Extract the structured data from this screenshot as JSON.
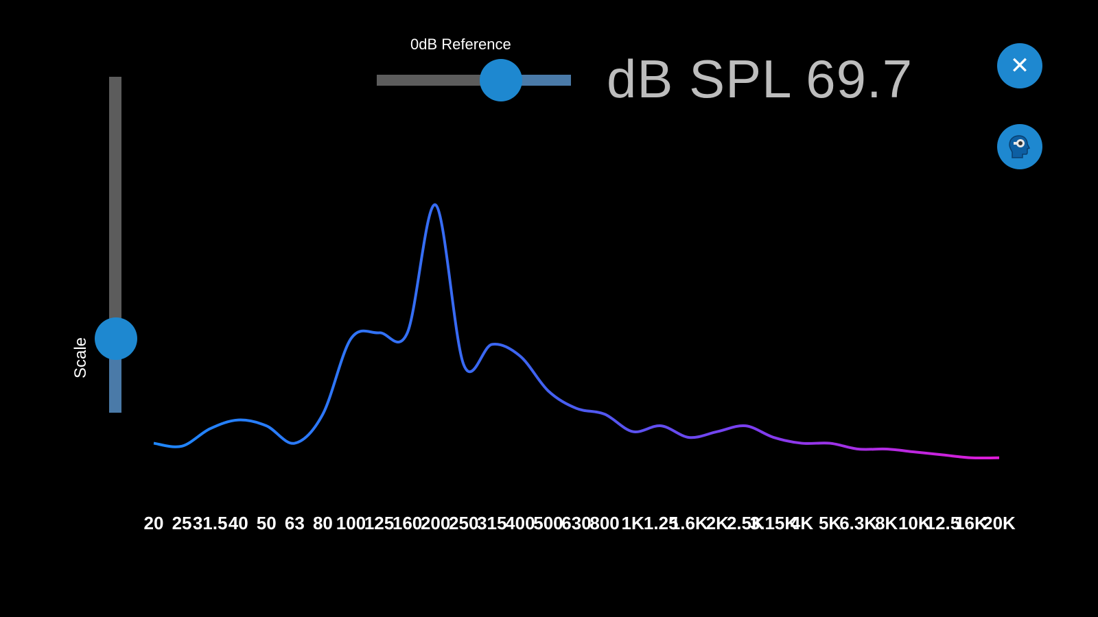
{
  "scale_slider": {
    "label": "Scale",
    "value": 0.22
  },
  "reference_slider": {
    "label": "0dB Reference",
    "value": 0.64
  },
  "spl_readout": {
    "text": "dB SPL 69.7"
  },
  "buttons": {
    "close_icon": "close-icon",
    "profile_icon": "head-profile-icon"
  },
  "colors": {
    "accent": "#1e88d0",
    "curve_start": "#1e88ff",
    "curve_mid": "#7b3ff0",
    "curve_end": "#e21ad6",
    "readout_text": "#bdbdbd"
  },
  "chart_data": {
    "type": "line",
    "title": "",
    "xlabel": "",
    "ylabel": "",
    "grid": false,
    "legend": "none",
    "ylim": [
      0,
      100
    ],
    "categories": [
      "20",
      "25",
      "31.5",
      "40",
      "50",
      "63",
      "80",
      "100",
      "125",
      "160",
      "200",
      "250",
      "315",
      "400",
      "500",
      "630",
      "800",
      "1K",
      "1.25",
      "1.6K",
      "2K",
      "2.5K",
      "3.15K",
      "4K",
      "5K",
      "6.3K",
      "8K",
      "10K",
      "12.5",
      "16K",
      "20K"
    ],
    "series": [
      {
        "values": [
          6,
          5,
          11,
          14,
          12,
          6,
          16,
          42,
          44,
          44,
          88,
          33,
          40,
          36,
          24,
          18,
          16,
          10,
          12,
          8,
          10,
          12,
          8,
          6,
          6,
          4,
          4,
          3,
          2,
          1,
          1
        ]
      }
    ]
  }
}
